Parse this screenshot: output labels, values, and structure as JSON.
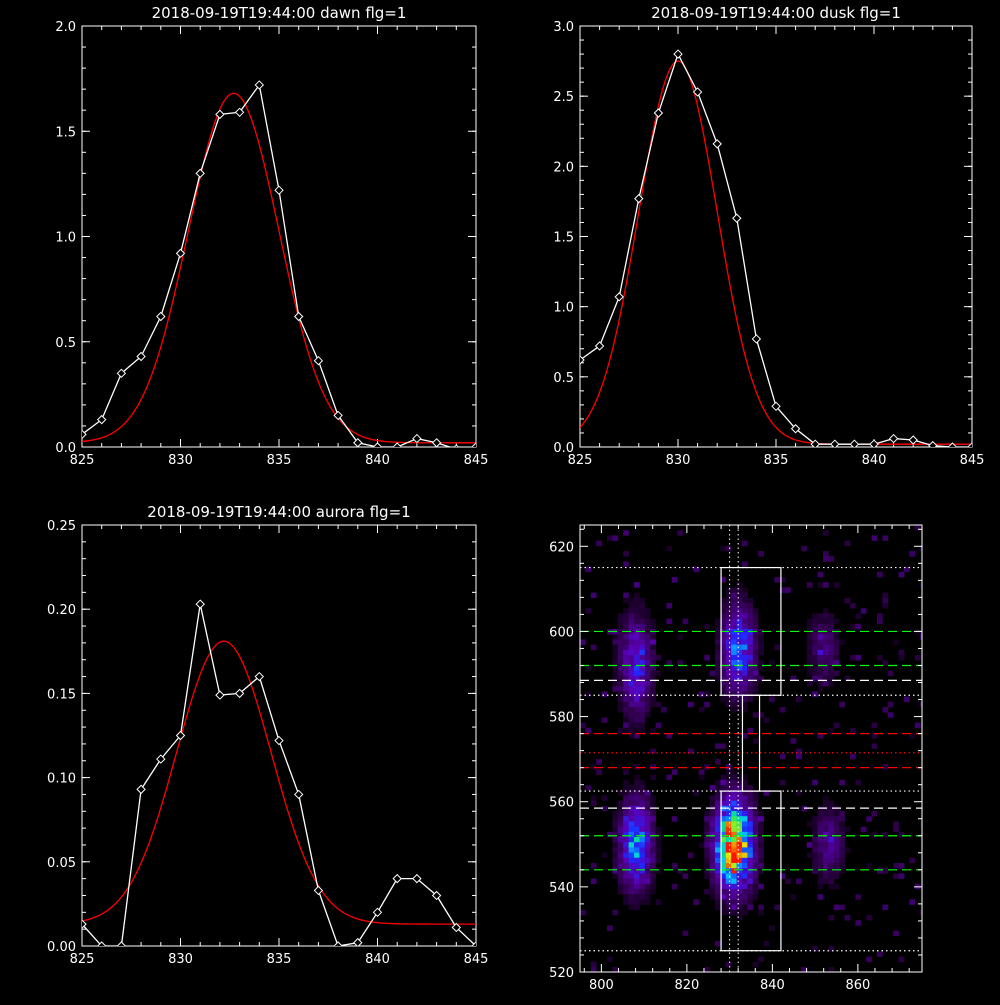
{
  "colors": {
    "background": "#000000",
    "axes": "#ffffff",
    "data_line": "#ffffff",
    "fit_line": "#ff0000"
  },
  "chart_data": [
    {
      "type": "line",
      "title": "2018-09-19T19:44:00 dawn flg=1",
      "xlim": [
        825,
        845
      ],
      "ylim": [
        0,
        2.0
      ],
      "xticks": [
        "825",
        "830",
        "835",
        "840",
        "845"
      ],
      "yticks": [
        "0.0",
        "0.5",
        "1.0",
        "1.5",
        "2.0"
      ],
      "series": [
        {
          "style": "data",
          "marker": "diamond",
          "color": "#ffffff",
          "x": [
            825,
            826,
            827,
            828,
            829,
            830,
            831,
            832,
            833,
            834,
            835,
            836,
            837,
            838,
            839,
            840,
            841,
            842,
            843,
            844,
            845
          ],
          "y": [
            0.06,
            0.13,
            0.35,
            0.43,
            0.62,
            0.92,
            1.3,
            1.58,
            1.59,
            1.72,
            1.22,
            0.62,
            0.41,
            0.15,
            0.02,
            0.0,
            0.0,
            0.04,
            0.02,
            -0.01,
            0.0
          ]
        },
        {
          "style": "fit",
          "color": "#ff0000",
          "model": {
            "center": 832.7,
            "sigma": 2.3,
            "amplitude": 1.66,
            "baseline": 0.02
          }
        }
      ]
    },
    {
      "type": "line",
      "title": "2018-09-19T19:44:00 dusk flg=1",
      "xlim": [
        825,
        845
      ],
      "ylim": [
        0,
        3.0
      ],
      "xticks": [
        "825",
        "830",
        "835",
        "840",
        "845"
      ],
      "yticks": [
        "0.0",
        "0.5",
        "1.0",
        "1.5",
        "2.0",
        "2.5",
        "3.0"
      ],
      "series": [
        {
          "style": "data",
          "marker": "diamond",
          "color": "#ffffff",
          "x": [
            825,
            826,
            827,
            828,
            829,
            830,
            831,
            832,
            833,
            834,
            835,
            836,
            837,
            838,
            839,
            840,
            841,
            842,
            843,
            844,
            845
          ],
          "y": [
            0.62,
            0.72,
            1.07,
            1.77,
            2.38,
            2.8,
            2.53,
            2.16,
            1.63,
            0.77,
            0.29,
            0.13,
            0.02,
            0.02,
            0.02,
            0.02,
            0.06,
            0.05,
            0.01,
            0.0,
            0.0
          ]
        },
        {
          "style": "fit",
          "color": "#ff0000",
          "model": {
            "center": 830.0,
            "sigma": 2.0,
            "amplitude": 2.73,
            "baseline": 0.02
          }
        }
      ]
    },
    {
      "type": "line",
      "title": "2018-09-19T19:44:00 aurora flg=1",
      "xlim": [
        825,
        845
      ],
      "ylim": [
        0,
        0.25
      ],
      "xticks": [
        "825",
        "830",
        "835",
        "840",
        "845"
      ],
      "yticks": [
        "0.00",
        "0.05",
        "0.10",
        "0.15",
        "0.20",
        "0.25"
      ],
      "series": [
        {
          "style": "data",
          "marker": "diamond",
          "color": "#ffffff",
          "x": [
            825,
            826,
            827,
            828,
            829,
            830,
            831,
            832,
            833,
            834,
            835,
            836,
            837,
            838,
            839,
            840,
            841,
            842,
            843,
            844,
            845
          ],
          "y": [
            0.013,
            0.0,
            0.0,
            0.093,
            0.111,
            0.125,
            0.203,
            0.149,
            0.15,
            0.16,
            0.122,
            0.09,
            0.033,
            0.0,
            0.002,
            0.02,
            0.04,
            0.04,
            0.03,
            0.011,
            0.0
          ]
        },
        {
          "style": "fit",
          "color": "#ff0000",
          "model": {
            "center": 832.2,
            "sigma": 2.4,
            "amplitude": 0.168,
            "baseline": 0.013
          }
        }
      ]
    },
    {
      "type": "heatmap",
      "xlim": [
        795,
        875
      ],
      "ylim": [
        520,
        625
      ],
      "xticks": [
        "800",
        "820",
        "840",
        "860"
      ],
      "yticks": [
        "520",
        "540",
        "560",
        "580",
        "600",
        "620"
      ],
      "colormap": "rainbow",
      "blobs": [
        {
          "x": 808,
          "y": 550,
          "intensity": 0.55,
          "sx": 2.6,
          "sy": 7
        },
        {
          "x": 808,
          "y": 592,
          "intensity": 0.38,
          "sx": 2.6,
          "sy": 8
        },
        {
          "x": 831,
          "y": 550,
          "intensity": 1.0,
          "sx": 3.0,
          "sy": 7
        },
        {
          "x": 832,
          "y": 596,
          "intensity": 0.5,
          "sx": 2.6,
          "sy": 7
        },
        {
          "x": 853,
          "y": 550,
          "intensity": 0.22,
          "sx": 2.6,
          "sy": 6
        },
        {
          "x": 852,
          "y": 596,
          "intensity": 0.18,
          "sx": 2.6,
          "sy": 6
        }
      ],
      "hlines": [
        {
          "y": 615,
          "color": "#ffffff",
          "style": "dotted"
        },
        {
          "y": 600,
          "color": "#00ff00",
          "style": "dashed"
        },
        {
          "y": 592,
          "color": "#00ff00",
          "style": "dashed"
        },
        {
          "y": 588.5,
          "color": "#ffffff",
          "style": "dashed"
        },
        {
          "y": 585,
          "color": "#ffffff",
          "style": "dotted"
        },
        {
          "y": 576,
          "color": "#ff0000",
          "style": "dashed"
        },
        {
          "y": 571.5,
          "color": "#ff0000",
          "style": "dotted"
        },
        {
          "y": 568,
          "color": "#ff0000",
          "style": "dashed"
        },
        {
          "y": 562.5,
          "color": "#ffffff",
          "style": "dotted"
        },
        {
          "y": 558.5,
          "color": "#ffffff",
          "style": "dashed"
        },
        {
          "y": 552,
          "color": "#00ff00",
          "style": "dashed"
        },
        {
          "y": 544,
          "color": "#00ff00",
          "style": "dashed"
        },
        {
          "y": 525,
          "color": "#ffffff",
          "style": "dotted"
        }
      ],
      "vlines": [
        {
          "x": 830,
          "color": "#ffffff",
          "style": "dotted"
        },
        {
          "x": 832,
          "color": "#ffffff",
          "style": "dotted"
        }
      ],
      "boxes": [
        {
          "x0": 828,
          "x1": 842,
          "y0": 585,
          "y1": 615
        },
        {
          "x0": 833,
          "x1": 837,
          "y0": 562.5,
          "y1": 585
        },
        {
          "x0": 828,
          "x1": 842,
          "y0": 525,
          "y1": 562.5
        }
      ]
    }
  ]
}
